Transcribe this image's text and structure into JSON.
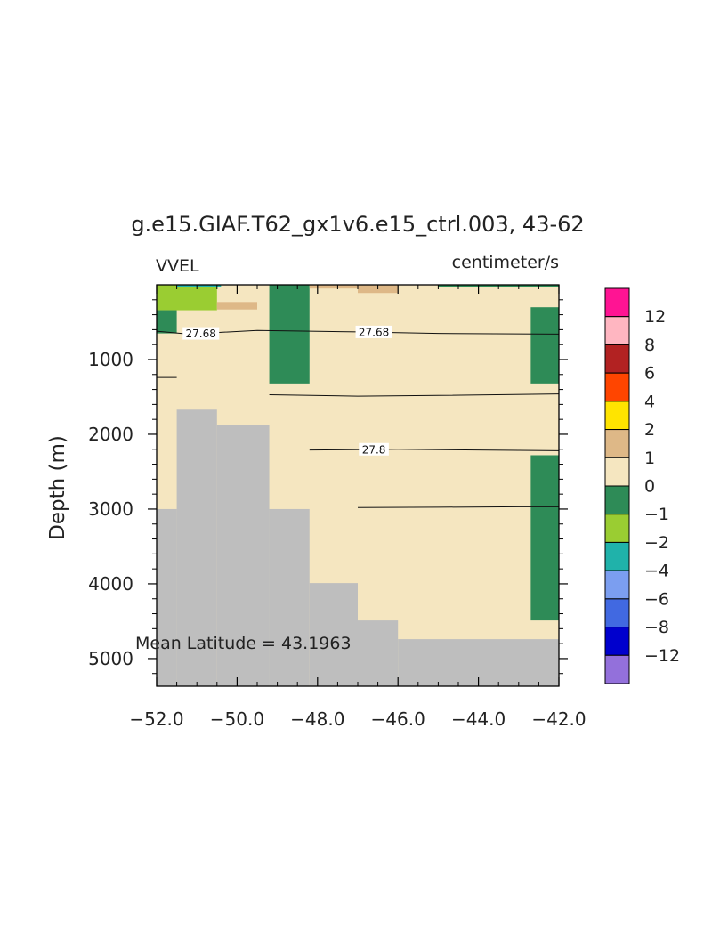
{
  "chart_data": {
    "type": "heatmap",
    "title": "g.e15.GIAF.T62_gx1v6.e15_ctrl.003, 43-62",
    "left_label": "VVEL",
    "right_label": "centimeter/s",
    "ylabel": "Depth (m)",
    "xlabel": "",
    "annotation": "Mean Latitude = 43.1963",
    "xlim": [
      -52,
      -42
    ],
    "ylim": [
      5370,
      0
    ],
    "y_reversed": true,
    "x_ticks": [
      -52,
      -50,
      -48,
      -46,
      -44,
      -42
    ],
    "x_tick_labels": [
      "−52.0",
      "−50.0",
      "−48.0",
      "−46.0",
      "−44.0",
      "−42.0"
    ],
    "y_ticks": [
      1000,
      2000,
      3000,
      4000,
      5000
    ],
    "y_tick_labels": [
      "1000",
      "2000",
      "3000",
      "4000",
      "5000"
    ],
    "background_fill": "#F5E6C0",
    "land_color": "#BEBEBE",
    "colorbar": {
      "levels": [
        "12",
        "8",
        "6",
        "4",
        "2",
        "1",
        "0",
        "−1",
        "−2",
        "−4",
        "−6",
        "−8",
        "−12"
      ],
      "colors": [
        "#FF1493",
        "#FFB6C1",
        "#B22222",
        "#FF4500",
        "#FFE400",
        "#DEB887",
        "#F5E6C0",
        "#2E8B57",
        "#9ACD32",
        "#20B2AA",
        "#7B9EF0",
        "#4169E1",
        "#0000CD",
        "#9370DB"
      ]
    },
    "cells": [
      {
        "x0": -52.0,
        "x1": -50.5,
        "d0": 0,
        "d1": 340,
        "color": "#9ACD32"
      },
      {
        "x0": -51.5,
        "x1": -50.4,
        "d0": 0,
        "d1": 30,
        "color": "#20B2AA"
      },
      {
        "x0": -52.0,
        "x1": -51.5,
        "d0": 340,
        "d1": 650,
        "color": "#2E8B57"
      },
      {
        "x0": -50.5,
        "x1": -49.5,
        "d0": 230,
        "d1": 330,
        "color": "#DEB887"
      },
      {
        "x0": -49.2,
        "x1": -48.2,
        "d0": 0,
        "d1": 1320,
        "color": "#2E8B57"
      },
      {
        "x0": -48.2,
        "x1": -47.0,
        "d0": 0,
        "d1": 50,
        "color": "#DEB887"
      },
      {
        "x0": -47.0,
        "x1": -46.0,
        "d0": 0,
        "d1": 110,
        "color": "#DEB887"
      },
      {
        "x0": -45.0,
        "x1": -42.0,
        "d0": 0,
        "d1": 35,
        "color": "#2E8B57"
      },
      {
        "x0": -42.7,
        "x1": -42.0,
        "d0": 300,
        "d1": 1320,
        "color": "#2E8B57"
      },
      {
        "x0": -42.7,
        "x1": -42.0,
        "d0": 2280,
        "d1": 4490,
        "color": "#2E8B57"
      }
    ],
    "land": [
      {
        "x0": -52.0,
        "x1": -51.5,
        "d0": 3000,
        "d1": 5370
      },
      {
        "x0": -51.5,
        "x1": -50.5,
        "d0": 1670,
        "d1": 5370
      },
      {
        "x0": -50.5,
        "x1": -49.2,
        "d0": 1870,
        "d1": 5370
      },
      {
        "x0": -49.2,
        "x1": -48.2,
        "d0": 3000,
        "d1": 5370
      },
      {
        "x0": -48.2,
        "x1": -47.0,
        "d0": 3990,
        "d1": 5370
      },
      {
        "x0": -47.0,
        "x1": -46.0,
        "d0": 4490,
        "d1": 5370
      },
      {
        "x0": -46.0,
        "x1": -42.0,
        "d0": 4740,
        "d1": 5370
      }
    ],
    "contours": [
      {
        "level": "27.68",
        "points": [
          [
            -52.0,
            620
          ],
          [
            -51.2,
            660
          ],
          [
            -49.5,
            610
          ],
          [
            -47.0,
            630
          ],
          [
            -45.0,
            650
          ],
          [
            -42.0,
            660
          ]
        ],
        "labels": [
          {
            "x": -50.9,
            "d": 650
          },
          {
            "x": -46.6,
            "d": 630
          }
        ]
      },
      {
        "level": "",
        "points": [
          [
            -52.0,
            1240
          ],
          [
            -51.5,
            1240
          ]
        ],
        "labels": []
      },
      {
        "level": "",
        "points": [
          [
            -49.2,
            1470
          ],
          [
            -47.0,
            1490
          ],
          [
            -45.0,
            1480
          ],
          [
            -42.0,
            1460
          ]
        ],
        "labels": []
      },
      {
        "level": "27.8",
        "points": [
          [
            -48.2,
            2210
          ],
          [
            -46.0,
            2200
          ],
          [
            -44.0,
            2210
          ],
          [
            -42.0,
            2220
          ]
        ],
        "labels": [
          {
            "x": -46.6,
            "d": 2200
          }
        ]
      },
      {
        "level": "",
        "points": [
          [
            -47.0,
            2980
          ],
          [
            -45.0,
            2975
          ],
          [
            -43.0,
            2970
          ],
          [
            -42.0,
            2970
          ]
        ],
        "labels": []
      }
    ]
  }
}
